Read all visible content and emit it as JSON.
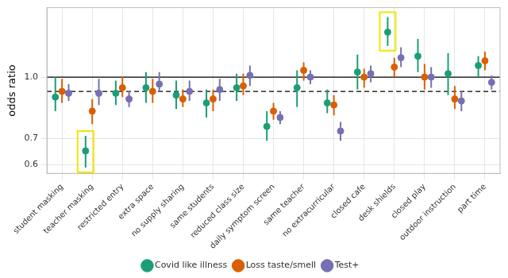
{
  "chart_data": {
    "type": "scatter",
    "y_label": "odds ratio",
    "categories": [
      "student masking",
      "teacher masking",
      "restricted entry",
      "extra space",
      "no supply sharing",
      "same students",
      "reduced class size",
      "daily symptom screen",
      "same teacher",
      "no extracurricular",
      "closed cafe",
      "desk shields",
      "closed play",
      "outdoor instruction",
      "part time"
    ],
    "series": [
      {
        "name": "Covid like illness",
        "color": "#1b9e77",
        "marker": "circle",
        "values": [
          0.89,
          0.65,
          0.91,
          0.94,
          0.9,
          0.86,
          0.94,
          0.75,
          0.94,
          0.86,
          1.03,
          1.3,
          1.13,
          1.02,
          1.07
        ],
        "lower": [
          0.82,
          0.59,
          0.85,
          0.86,
          0.83,
          0.79,
          0.87,
          0.69,
          0.84,
          0.81,
          0.93,
          1.2,
          1.03,
          0.9,
          1.0
        ],
        "upper": [
          1.0,
          0.71,
          0.98,
          1.03,
          0.98,
          0.93,
          1.02,
          0.82,
          1.04,
          0.93,
          1.14,
          1.42,
          1.25,
          1.15,
          1.13
        ]
      },
      {
        "name": "Loss taste/smell",
        "color": "#d95f02",
        "marker": "circle",
        "values": [
          0.92,
          0.82,
          0.94,
          0.92,
          0.88,
          0.88,
          0.95,
          0.82,
          1.04,
          0.85,
          1.0,
          1.06,
          1.0,
          0.88,
          1.1
        ],
        "lower": [
          0.86,
          0.76,
          0.89,
          0.86,
          0.84,
          0.82,
          0.9,
          0.78,
          0.98,
          0.8,
          0.94,
          1.0,
          0.93,
          0.83,
          1.04
        ],
        "upper": [
          0.99,
          0.88,
          1.0,
          0.99,
          0.93,
          0.93,
          1.02,
          0.86,
          1.09,
          0.9,
          1.05,
          1.12,
          1.08,
          0.95,
          1.16
        ]
      },
      {
        "name": "Test+",
        "color": "#7570b3",
        "marker": "circle",
        "values": [
          0.91,
          0.91,
          0.88,
          0.96,
          0.92,
          0.93,
          1.01,
          0.79,
          1.0,
          0.73,
          1.02,
          1.12,
          1.0,
          0.87,
          0.97
        ],
        "lower": [
          0.87,
          0.85,
          0.84,
          0.92,
          0.87,
          0.87,
          0.95,
          0.76,
          0.96,
          0.69,
          0.97,
          1.06,
          0.94,
          0.82,
          0.93
        ],
        "upper": [
          0.96,
          0.99,
          0.92,
          1.03,
          0.98,
          0.99,
          1.07,
          0.82,
          1.04,
          0.77,
          1.07,
          1.19,
          1.06,
          0.92,
          1.01
        ]
      }
    ],
    "hlines": [
      {
        "value": 1.0,
        "line_style": "solid"
      },
      {
        "value": 0.92,
        "line_style": "dashed"
      }
    ],
    "highlights": [
      {
        "category": "teacher masking",
        "series": "Covid like illness"
      },
      {
        "category": "desk shields",
        "series": "Covid like illness"
      }
    ],
    "log": "y",
    "ylim": [
      0.57,
      1.5
    ],
    "yticks": [
      0.6,
      0.7,
      {
        "value": 1.0,
        "label": "1.0"
      }
    ],
    "grid": true,
    "legend": "bottom"
  }
}
